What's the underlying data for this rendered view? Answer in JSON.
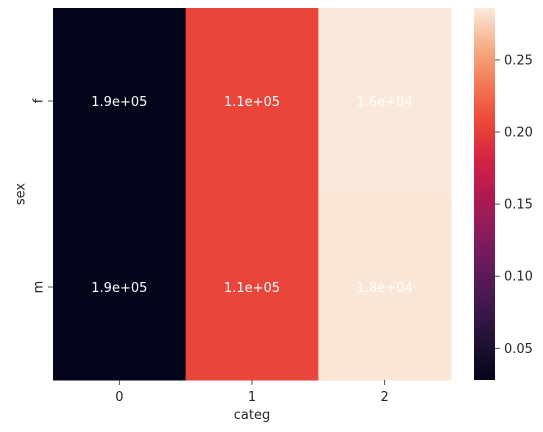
{
  "chart_data": {
    "type": "heatmap",
    "title": "",
    "xlabel": "categ",
    "ylabel": "sex",
    "x_categories": [
      "0",
      "1",
      "2"
    ],
    "y_categories": [
      "f",
      "m"
    ],
    "color_values": [
      [
        0.028,
        0.205,
        0.285
      ],
      [
        0.028,
        0.205,
        0.284
      ]
    ],
    "annotations": [
      [
        "1.9e+05",
        "1.1e+05",
        "1.6e+04"
      ],
      [
        "1.9e+05",
        "1.1e+05",
        "1.8e+04"
      ]
    ],
    "annotation_color_dark_threshold": 0.18,
    "colormap": "rocket",
    "colorbar": {
      "range": [
        0.028,
        0.286
      ],
      "ticks": [
        0.05,
        0.1,
        0.15,
        0.2,
        0.25
      ],
      "tick_labels": [
        "0.05",
        "0.10",
        "0.15",
        "0.20",
        "0.25"
      ]
    },
    "grid": false,
    "legend": "colorbar-right"
  }
}
